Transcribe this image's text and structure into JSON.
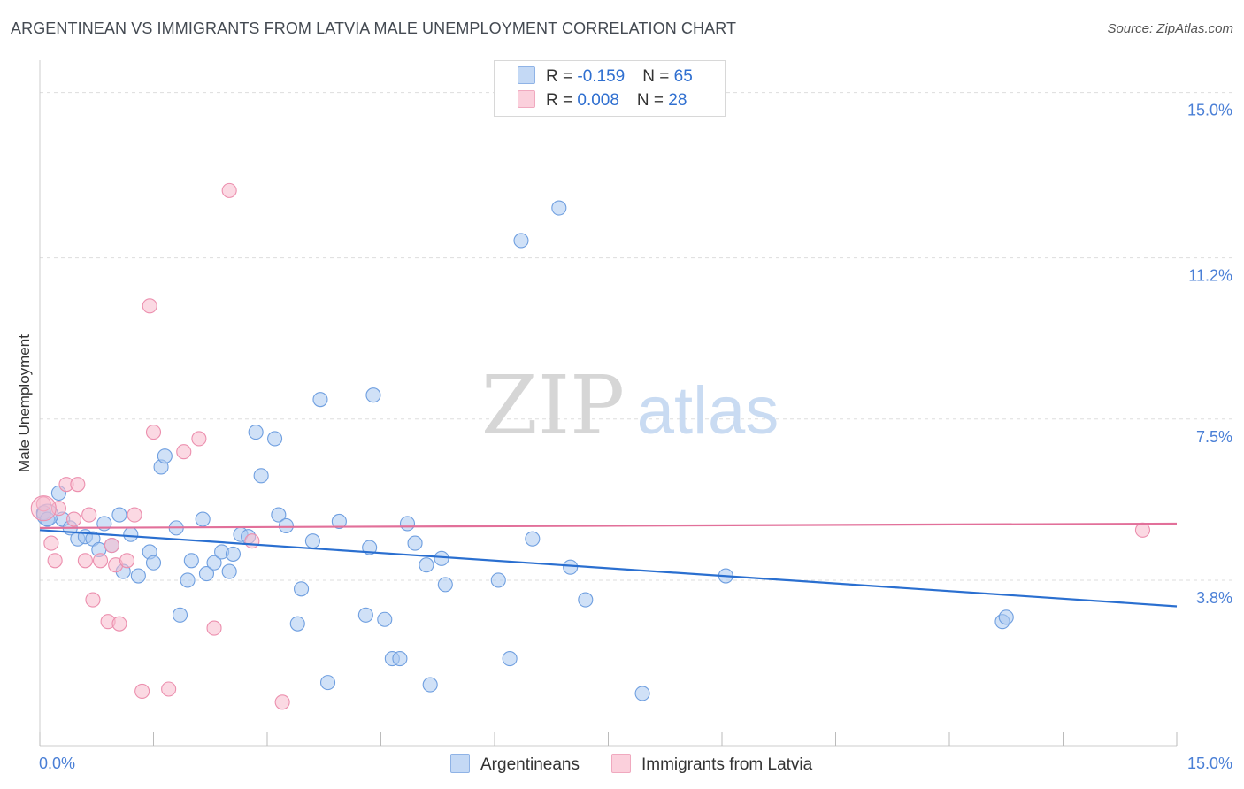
{
  "header": {
    "title": "ARGENTINEAN VS IMMIGRANTS FROM LATVIA MALE UNEMPLOYMENT CORRELATION CHART",
    "source": "Source: ZipAtlas.com"
  },
  "legend": {
    "rows": [
      {
        "r_label": "R = ",
        "r_value": "-0.159",
        "n_label": "N = ",
        "n_value": "65"
      },
      {
        "r_label": "R = ",
        "r_value": "0.008",
        "n_label": "N = ",
        "n_value": "28"
      }
    ]
  },
  "watermark": {
    "zip": "ZIP",
    "atlas": "atlas"
  },
  "colors": {
    "blue_fill": "#a9c8f0",
    "blue_stroke": "#6f9fe0",
    "blue_line": "#2a6fd0",
    "pink_fill": "#f7b9cc",
    "pink_stroke": "#ec8fae",
    "pink_line": "#e2709a",
    "axis_text": "#4a7fd6",
    "grid": "#dddddd"
  },
  "chart_data": {
    "type": "scatter",
    "title": "ARGENTINEAN VS IMMIGRANTS FROM LATVIA MALE UNEMPLOYMENT CORRELATION CHART",
    "xlabel": "",
    "ylabel": "Male Unemployment",
    "xlim": [
      0,
      15
    ],
    "ylim": [
      0,
      15.5
    ],
    "x_tick_labels": {
      "min": "0.0%",
      "max": "15.0%"
    },
    "y_ticks": [
      {
        "value": 3.8,
        "label": "3.8%"
      },
      {
        "value": 7.5,
        "label": "7.5%"
      },
      {
        "value": 11.2,
        "label": "11.2%"
      },
      {
        "value": 15.0,
        "label": "15.0%"
      }
    ],
    "series": [
      {
        "name": "Argentineans",
        "color": "blue",
        "trend": {
          "x": [
            0,
            15
          ],
          "y": [
            4.95,
            3.2
          ]
        },
        "points": [
          [
            0.05,
            5.35
          ],
          [
            0.1,
            5.2
          ],
          [
            0.25,
            5.8
          ],
          [
            0.3,
            5.2
          ],
          [
            0.4,
            5.0
          ],
          [
            0.5,
            4.75
          ],
          [
            0.6,
            4.8
          ],
          [
            0.7,
            4.75
          ],
          [
            0.78,
            4.5
          ],
          [
            0.85,
            5.1
          ],
          [
            0.95,
            4.6
          ],
          [
            1.05,
            5.3
          ],
          [
            1.1,
            4.0
          ],
          [
            1.2,
            4.85
          ],
          [
            1.3,
            3.9
          ],
          [
            1.45,
            4.45
          ],
          [
            1.5,
            4.2
          ],
          [
            1.6,
            6.4
          ],
          [
            1.65,
            6.65
          ],
          [
            1.8,
            5.0
          ],
          [
            1.85,
            3.0
          ],
          [
            1.95,
            3.8
          ],
          [
            2.0,
            4.25
          ],
          [
            2.15,
            5.2
          ],
          [
            2.2,
            3.95
          ],
          [
            2.3,
            4.2
          ],
          [
            2.4,
            4.45
          ],
          [
            2.5,
            4.0
          ],
          [
            2.55,
            4.4
          ],
          [
            2.65,
            4.85
          ],
          [
            2.75,
            4.8
          ],
          [
            2.85,
            7.2
          ],
          [
            2.92,
            6.2
          ],
          [
            3.1,
            7.05
          ],
          [
            3.15,
            5.3
          ],
          [
            3.25,
            5.05
          ],
          [
            3.4,
            2.8
          ],
          [
            3.45,
            3.6
          ],
          [
            3.6,
            4.7
          ],
          [
            3.7,
            7.95
          ],
          [
            3.8,
            1.45
          ],
          [
            3.95,
            5.15
          ],
          [
            4.3,
            3.0
          ],
          [
            4.35,
            4.55
          ],
          [
            4.4,
            8.05
          ],
          [
            4.55,
            2.9
          ],
          [
            4.65,
            2.0
          ],
          [
            4.75,
            2.0
          ],
          [
            4.85,
            5.1
          ],
          [
            4.95,
            4.65
          ],
          [
            5.1,
            4.15
          ],
          [
            5.15,
            1.4
          ],
          [
            5.3,
            4.3
          ],
          [
            5.35,
            3.7
          ],
          [
            6.05,
            3.8
          ],
          [
            6.2,
            2.0
          ],
          [
            6.35,
            11.6
          ],
          [
            6.5,
            4.75
          ],
          [
            6.85,
            12.35
          ],
          [
            7.0,
            4.1
          ],
          [
            7.2,
            3.35
          ],
          [
            7.95,
            1.2
          ],
          [
            9.05,
            3.9
          ],
          [
            12.7,
            2.85
          ],
          [
            12.75,
            2.95
          ]
        ]
      },
      {
        "name": "Immigrants from Latvia",
        "color": "pink",
        "trend": {
          "x": [
            0,
            15
          ],
          "y": [
            5.0,
            5.1
          ]
        },
        "points": [
          [
            0.05,
            5.55
          ],
          [
            0.15,
            4.65
          ],
          [
            0.2,
            4.25
          ],
          [
            0.35,
            6.0
          ],
          [
            0.45,
            5.2
          ],
          [
            0.5,
            6.0
          ],
          [
            0.6,
            4.25
          ],
          [
            0.65,
            5.3
          ],
          [
            0.7,
            3.35
          ],
          [
            0.8,
            4.25
          ],
          [
            0.9,
            2.85
          ],
          [
            0.95,
            4.6
          ],
          [
            1.0,
            4.15
          ],
          [
            1.05,
            2.8
          ],
          [
            1.15,
            4.25
          ],
          [
            1.25,
            5.3
          ],
          [
            1.35,
            1.25
          ],
          [
            1.45,
            10.1
          ],
          [
            1.5,
            7.2
          ],
          [
            1.7,
            1.3
          ],
          [
            1.9,
            6.75
          ],
          [
            2.1,
            7.05
          ],
          [
            2.3,
            2.7
          ],
          [
            2.5,
            12.75
          ],
          [
            2.8,
            4.7
          ],
          [
            3.2,
            1.0
          ],
          [
            14.55,
            4.95
          ],
          [
            0.25,
            5.45
          ]
        ]
      }
    ]
  },
  "bottom_legend": {
    "items": [
      {
        "label": "Argentineans"
      },
      {
        "label": "Immigrants from Latvia"
      }
    ]
  }
}
